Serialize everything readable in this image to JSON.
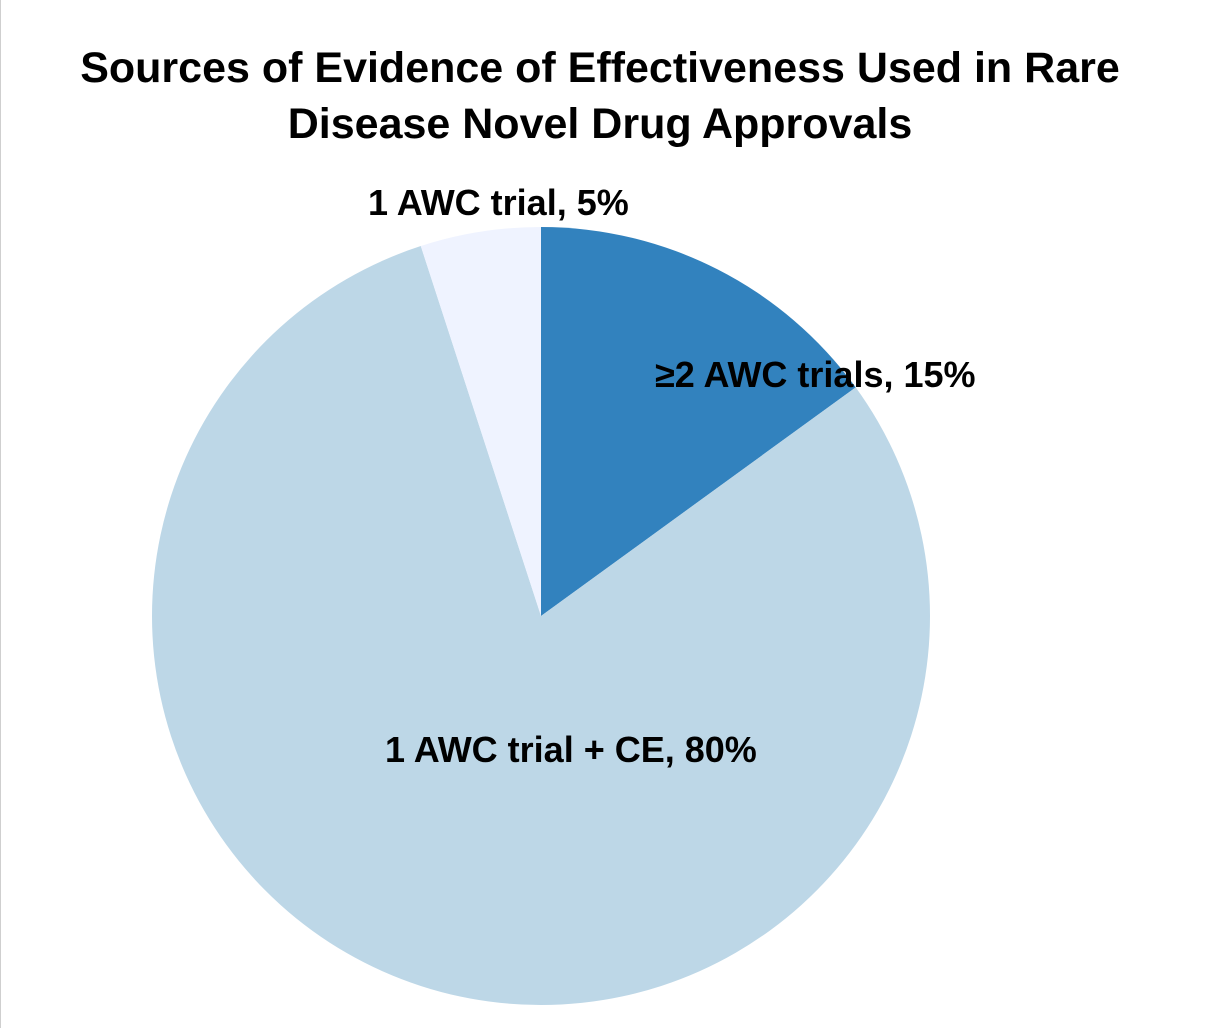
{
  "chart_data": {
    "type": "pie",
    "title_lines": [
      "Sources of Evidence of Effectiveness Used in Rare",
      "Disease Novel Drug Approvals"
    ],
    "slices": [
      {
        "label": "≥2 AWC trials, 15%",
        "value": 15,
        "color": "#3282be"
      },
      {
        "label": "1 AWC trial + CE, 80%",
        "value": 80,
        "color": "#bdd7e7"
      },
      {
        "label": "1 AWC trial, 5%",
        "value": 5,
        "color": "#eff3ff"
      }
    ],
    "start": "12 o'clock",
    "direction": "clockwise",
    "legend": "none"
  }
}
